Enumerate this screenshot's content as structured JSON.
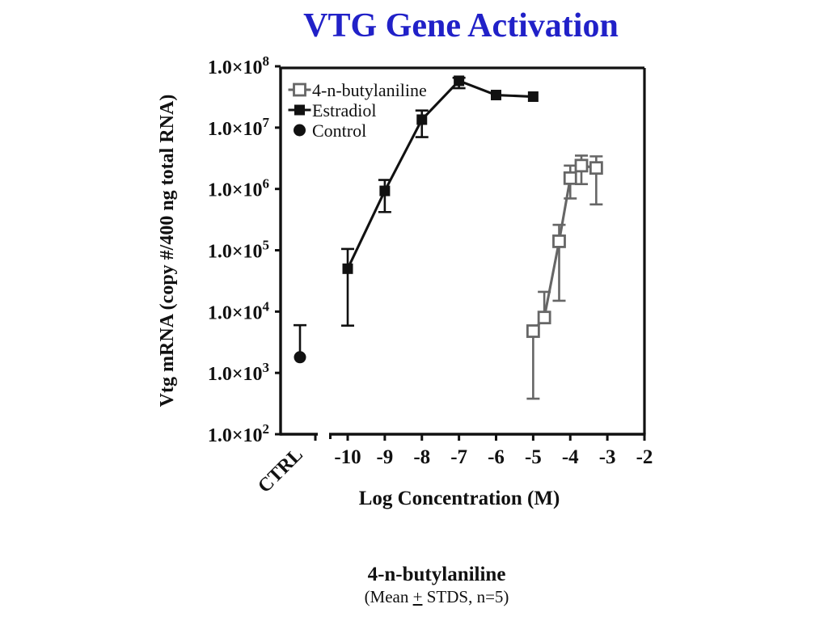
{
  "page": {
    "title": "VTG Gene Activation"
  },
  "colors": {
    "title_blue": "#2121c8",
    "series_black": "#111111",
    "series_gray": "#666666",
    "background": "#ffffff"
  },
  "caption": {
    "line1": "4-n-butylaniline",
    "line2_before": "(Mean ",
    "line2_plus": "+",
    "line2_after": " STDS, n=5)"
  },
  "chart_data": {
    "type": "line",
    "title": "VTG Gene Activation",
    "xlabel": "Log Concentration (M)",
    "ylabel": "Vtg mRNA (copy #/400 ng total RNA)",
    "x_ticks": [
      -10,
      -9,
      -8,
      -7,
      -6,
      -5,
      -4,
      -3,
      -2
    ],
    "x_range": [
      -10,
      -2
    ],
    "ctrl_tick_label": "CTRL",
    "y_scale": "log",
    "y_tick_label_prefix": "1.0×10",
    "y_tick_exponents": [
      8,
      7,
      6,
      5,
      4,
      3,
      2
    ],
    "ylim_log": [
      2,
      8
    ],
    "grid": false,
    "legend_position": "inside-top-left",
    "legend": [
      {
        "label": "4-n-butylaniline",
        "marker": "open-square",
        "color": "#666666",
        "line_through_marker": true
      },
      {
        "label": "Estradiol",
        "marker": "filled-square",
        "color": "#111111",
        "line_through_marker": true
      },
      {
        "label": "Control",
        "marker": "filled-circle",
        "color": "#111111",
        "line_through_marker": false
      }
    ],
    "series": [
      {
        "name": "Estradiol",
        "color": "#111111",
        "marker": "filled-square",
        "points": [
          {
            "x": -10,
            "y": 50000.0,
            "lo": 5900.0,
            "hi": 105000.0
          },
          {
            "x": -9,
            "y": 930000.0,
            "lo": 420000.0,
            "hi": 1400000.0
          },
          {
            "x": -8,
            "y": 13500000.0,
            "lo": 7000000.0,
            "hi": 19000000.0
          },
          {
            "x": -7,
            "y": 58000000.0,
            "lo": 44000000.0,
            "hi": 65000000.0
          },
          {
            "x": -6,
            "y": 34000000.0
          },
          {
            "x": -5,
            "y": 32000000.0
          }
        ]
      },
      {
        "name": "4-n-butylaniline",
        "color": "#666666",
        "marker": "open-square",
        "points": [
          {
            "x": -5.0,
            "y": 4800.0,
            "lo": 380.0
          },
          {
            "x": -4.7,
            "y": 8000.0,
            "hi": 21000.0
          },
          {
            "x": -4.3,
            "y": 140000.0,
            "lo": 15000.0,
            "hi": 260000.0
          },
          {
            "x": -4.0,
            "y": 1500000.0,
            "lo": 700000.0,
            "hi": 2400000.0
          },
          {
            "x": -3.7,
            "y": 2400000.0,
            "lo": 1200000.0,
            "hi": 3500000.0
          },
          {
            "x": -3.3,
            "y": 2200000.0,
            "lo": 560000.0,
            "hi": 3400000.0
          }
        ]
      },
      {
        "name": "Control",
        "color": "#111111",
        "marker": "filled-circle",
        "ctrl_category": true,
        "points": [
          {
            "x": "CTRL",
            "y": 1800.0,
            "hi": 6000.0
          }
        ]
      }
    ]
  }
}
